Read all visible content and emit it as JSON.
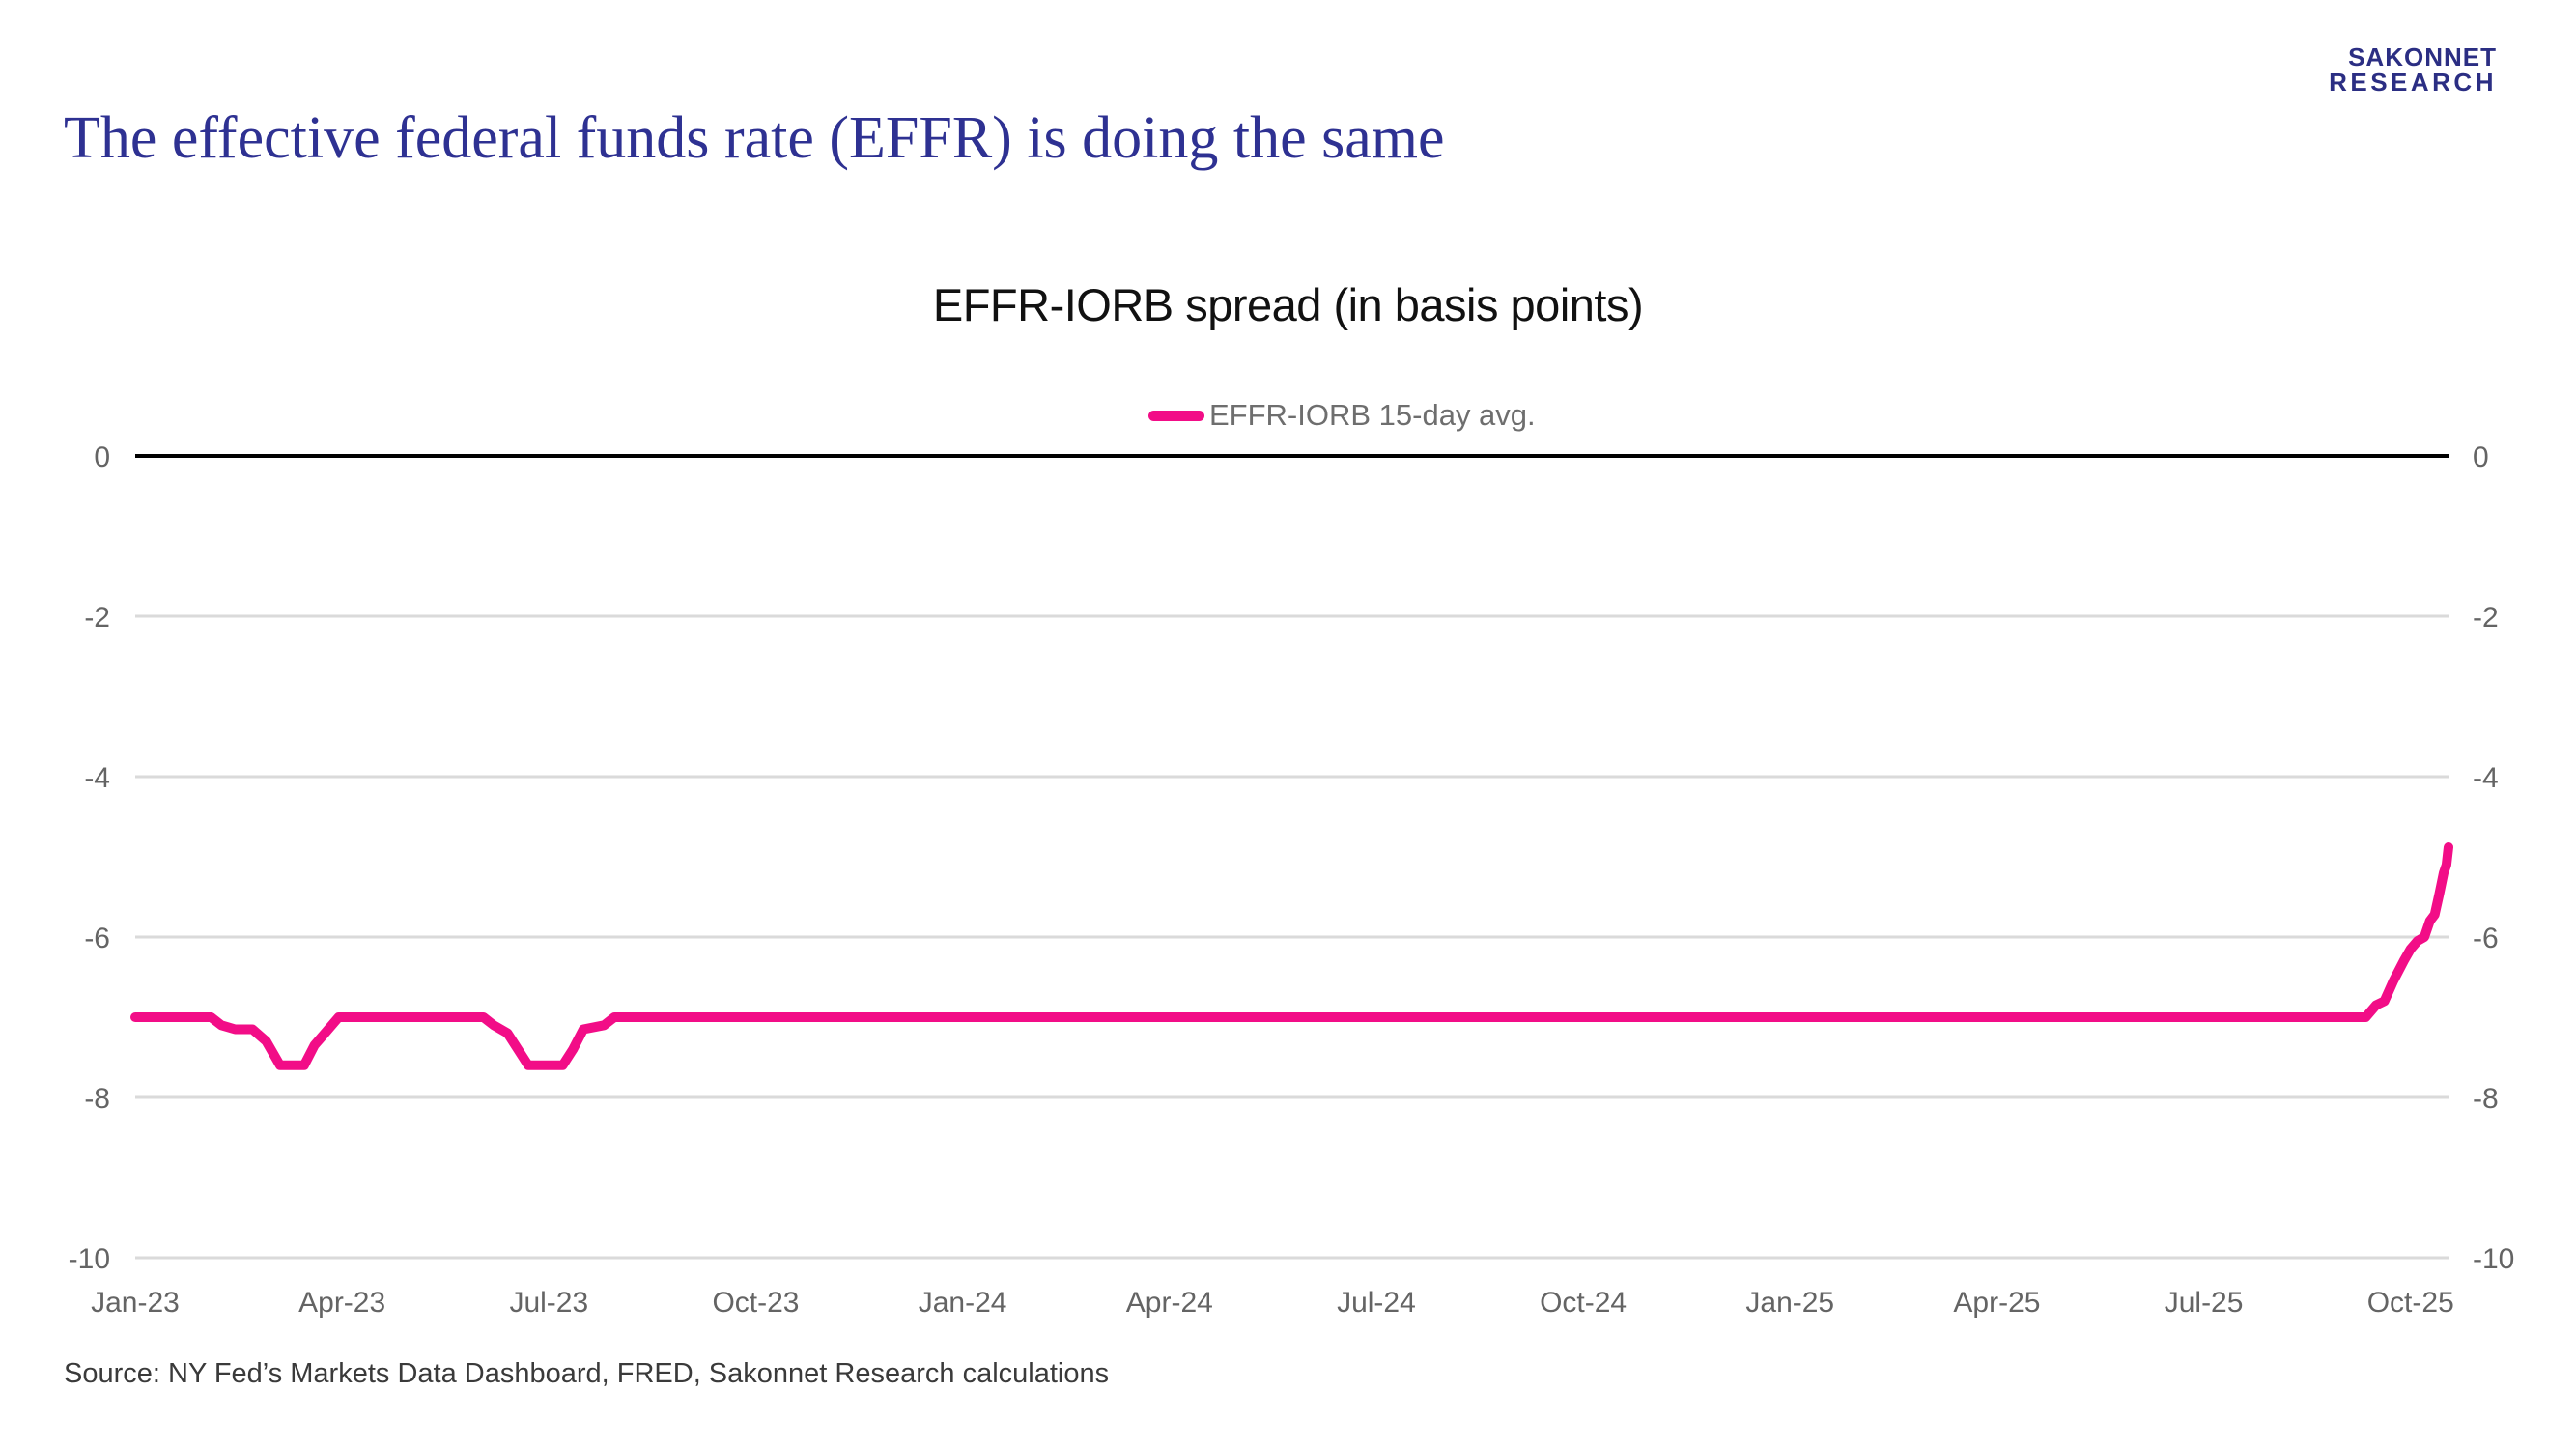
{
  "page": {
    "title": "The effective federal funds rate (EFFR) is doing the same",
    "logo_line1": "SAKONNET",
    "logo_line2": "RESEARCH",
    "source": "Source: NY Fed’s Markets Data Dashboard, FRED, Sakonnet Research calculations"
  },
  "colors": {
    "title_text": "#2E3192",
    "logo_text": "#2B2E83",
    "line": "#F20D87",
    "grid": "#DADADA",
    "zero_line": "#000000",
    "axis_text": "#646464",
    "legend_text": "#6E6E6E",
    "chart_title_text": "#111111",
    "source_text": "#3A3A3A",
    "background": "#FFFFFF"
  },
  "chart_data": {
    "type": "line",
    "title": "EFFR-IORB spread (in basis points)",
    "legend": [
      {
        "label": "EFFR-IORB 15-day avg.",
        "color": "#F20D87"
      }
    ],
    "legend_position": "top-center",
    "grid": "horizontal-only",
    "ylim": [
      -10,
      0
    ],
    "yticks": [
      0,
      -2,
      -4,
      -6,
      -8,
      -10
    ],
    "ytick_sides": "both",
    "xtick_labels": [
      "Jan-23",
      "Apr-23",
      "Jul-23",
      "Oct-23",
      "Jan-24",
      "Apr-24",
      "Jul-24",
      "Oct-24",
      "Jan-25",
      "Apr-25",
      "Jul-25",
      "Oct-25"
    ],
    "xtick_months": [
      0,
      3,
      6,
      9,
      12,
      15,
      18,
      21,
      24,
      27,
      30,
      33
    ],
    "xlim_months": [
      0,
      33.55
    ],
    "x_unit": "months since Jan-2023 (0 = Jan-23, 33 = Oct-25)",
    "series": [
      {
        "name": "EFFR-IORB 15-day avg.",
        "color": "#F20D87",
        "points": [
          [
            0.0,
            -7.0
          ],
          [
            1.1,
            -7.0
          ],
          [
            1.25,
            -7.1
          ],
          [
            1.45,
            -7.15
          ],
          [
            1.7,
            -7.15
          ],
          [
            1.9,
            -7.3
          ],
          [
            2.1,
            -7.6
          ],
          [
            2.45,
            -7.6
          ],
          [
            2.6,
            -7.35
          ],
          [
            2.7,
            -7.25
          ],
          [
            2.95,
            -7.0
          ],
          [
            5.05,
            -7.0
          ],
          [
            5.2,
            -7.1
          ],
          [
            5.4,
            -7.2
          ],
          [
            5.55,
            -7.4
          ],
          [
            5.7,
            -7.6
          ],
          [
            6.2,
            -7.6
          ],
          [
            6.35,
            -7.4
          ],
          [
            6.5,
            -7.15
          ],
          [
            6.8,
            -7.1
          ],
          [
            6.95,
            -7.0
          ],
          [
            32.35,
            -7.0
          ],
          [
            32.5,
            -6.85
          ],
          [
            32.62,
            -6.8
          ],
          [
            32.75,
            -6.55
          ],
          [
            32.9,
            -6.3
          ],
          [
            33.0,
            -6.15
          ],
          [
            33.1,
            -6.05
          ],
          [
            33.2,
            -6.0
          ],
          [
            33.28,
            -5.8
          ],
          [
            33.35,
            -5.72
          ],
          [
            33.42,
            -5.45
          ],
          [
            33.48,
            -5.2
          ],
          [
            33.52,
            -5.1
          ],
          [
            33.55,
            -4.88
          ]
        ]
      }
    ]
  }
}
